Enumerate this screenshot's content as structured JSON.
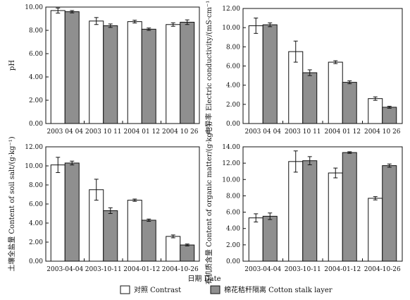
{
  "x_axis_title": "日期 Date",
  "legend": [
    {
      "label": "对照 Contrast",
      "color": "#ffffff"
    },
    {
      "label": "棉花秸秆隔离 Cotton stalk layer",
      "color": "#8f8f8f"
    }
  ],
  "chart_data": [
    {
      "type": "bar",
      "ylabel": "pH",
      "ylim": [
        0,
        10
      ],
      "yticks": [
        "0.00",
        "2.00",
        "4.00",
        "6.00",
        "8.00",
        "10.00"
      ],
      "categories": [
        "2003-04-04",
        "2003-10-11",
        "2004-01-12",
        "2004-10-26"
      ],
      "series": [
        {
          "name": "对照 Contrast",
          "values": [
            9.7,
            8.8,
            8.75,
            8.5
          ],
          "errors": [
            0.22,
            0.3,
            0.12,
            0.15
          ]
        },
        {
          "name": "棉花秸秆隔离 Cotton stalk layer",
          "values": [
            9.6,
            8.4,
            8.1,
            8.7
          ],
          "errors": [
            0.1,
            0.15,
            0.1,
            0.2
          ]
        }
      ]
    },
    {
      "type": "bar",
      "ylabel": "电导率 Electric conductivity/(mS·cm⁻¹)",
      "ylim": [
        0,
        12
      ],
      "yticks": [
        "0.00",
        "2.00",
        "4.00",
        "6.00",
        "8.00",
        "10.00",
        "12.00"
      ],
      "categories": [
        "2003-04-04",
        "2003-10-11",
        "2004-01-12",
        "2004-10-26"
      ],
      "series": [
        {
          "name": "对照 Contrast",
          "values": [
            10.2,
            7.5,
            6.4,
            2.6
          ],
          "errors": [
            0.8,
            1.1,
            0.15,
            0.18
          ]
        },
        {
          "name": "棉花秸秆隔离 Cotton stalk layer",
          "values": [
            10.3,
            5.3,
            4.3,
            1.7
          ],
          "errors": [
            0.2,
            0.3,
            0.15,
            0.1
          ]
        }
      ]
    },
    {
      "type": "bar",
      "ylabel": "土壤全盐量 Content of soil salt/(g·kg⁻¹)",
      "ylim": [
        0,
        12
      ],
      "yticks": [
        "0.00",
        "2.00",
        "4.00",
        "6.00",
        "8.00",
        "10.00",
        "12.00"
      ],
      "categories": [
        "2003-04-04",
        "2003-10-11",
        "2004-01-12",
        "2004-10-26"
      ],
      "series": [
        {
          "name": "对照 Contrast",
          "values": [
            10.1,
            7.5,
            6.4,
            2.6
          ],
          "errors": [
            0.8,
            1.1,
            0.12,
            0.15
          ]
        },
        {
          "name": "棉花秸秆隔离 Cotton stalk layer",
          "values": [
            10.3,
            5.3,
            4.3,
            1.7
          ],
          "errors": [
            0.2,
            0.3,
            0.12,
            0.1
          ]
        }
      ]
    },
    {
      "type": "bar",
      "ylabel": "有机质含量 Content of organic matter/(g·kg⁻¹)",
      "ylim": [
        0,
        14
      ],
      "yticks": [
        "0.00",
        "2.00",
        "4.00",
        "6.00",
        "8.00",
        "10.00",
        "12.00",
        "14.00"
      ],
      "categories": [
        "2003-04-04",
        "2003-10-11",
        "2004-01-12",
        "2004-10-26"
      ],
      "series": [
        {
          "name": "对照 Contrast",
          "values": [
            5.3,
            12.2,
            10.8,
            7.7
          ],
          "errors": [
            0.5,
            1.3,
            0.6,
            0.2
          ]
        },
        {
          "name": "棉花秸秆隔离 Cotton stalk layer",
          "values": [
            5.5,
            12.3,
            13.3,
            11.7
          ],
          "errors": [
            0.4,
            0.5,
            0.1,
            0.2
          ]
        }
      ]
    }
  ]
}
